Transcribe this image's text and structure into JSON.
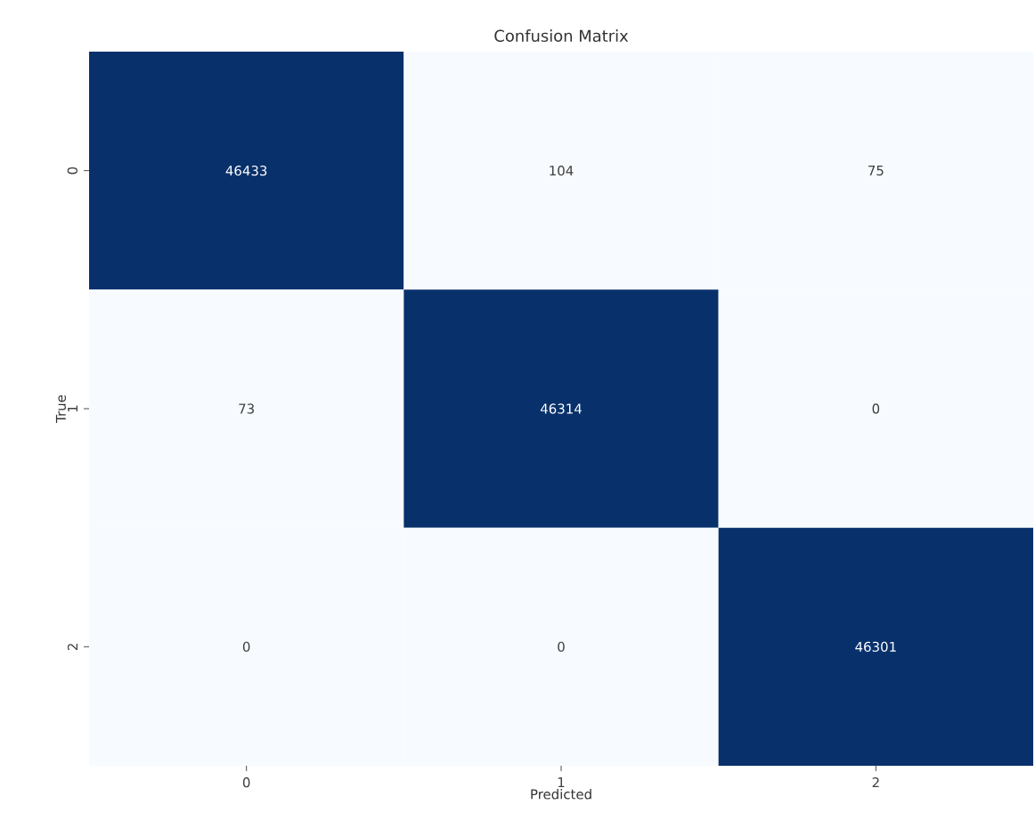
{
  "chart_data": {
    "type": "heatmap",
    "title": "Confusion Matrix",
    "xlabel": "Predicted",
    "ylabel": "True",
    "categories": [
      "0",
      "1",
      "2"
    ],
    "y_categories": [
      "0",
      "1",
      "2"
    ],
    "cells": [
      [
        46433,
        104,
        75
      ],
      [
        73,
        46314,
        0
      ],
      [
        0,
        0,
        46301
      ]
    ],
    "data_labels": true
  }
}
